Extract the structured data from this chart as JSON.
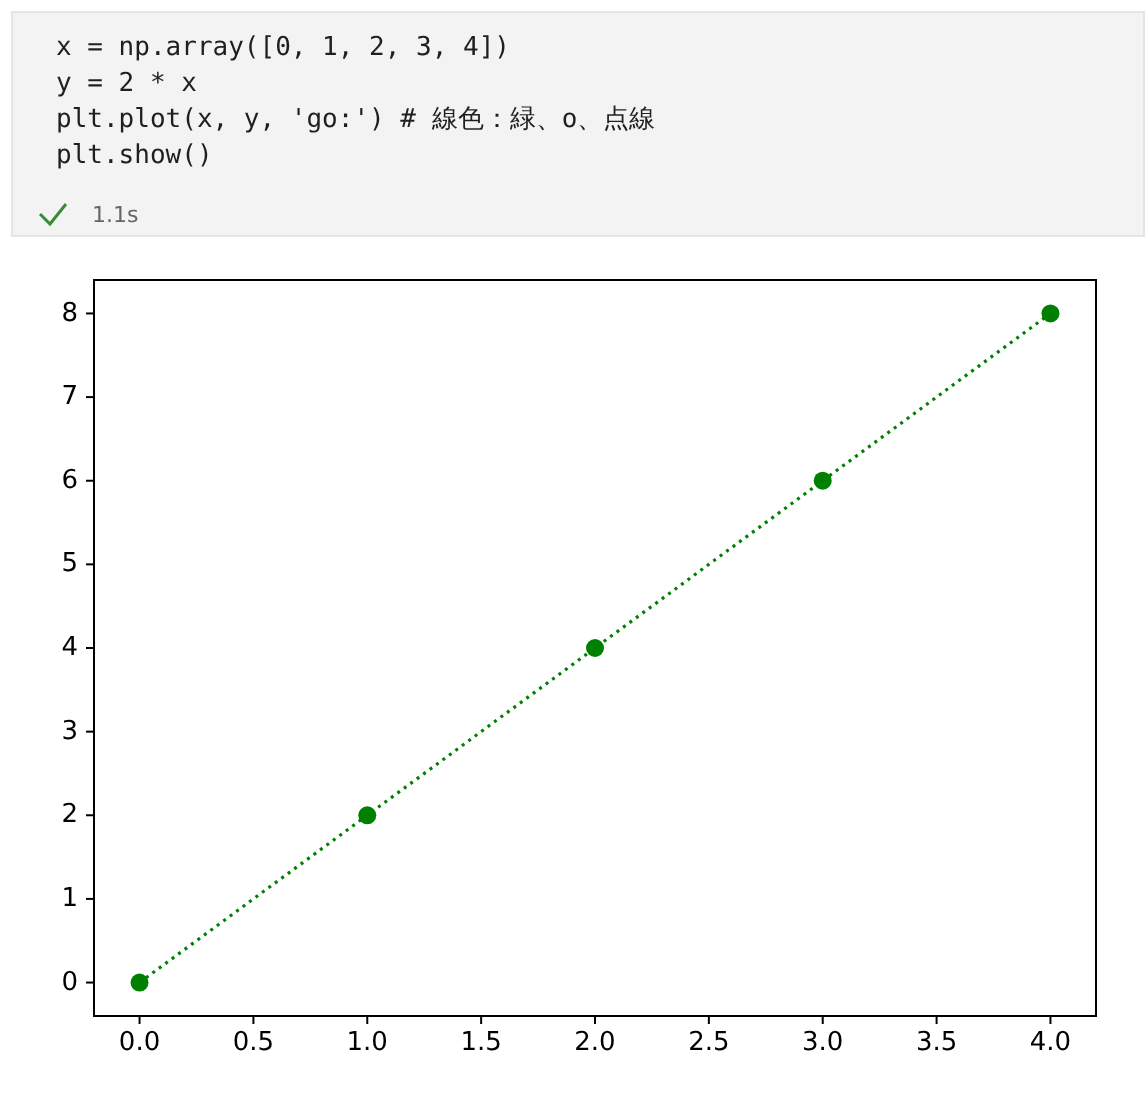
{
  "chart_data": {
    "type": "line",
    "x": [
      0,
      1,
      2,
      3,
      4
    ],
    "series": [
      {
        "color": "#008000",
        "values": [
          0,
          2,
          4,
          6,
          8
        ]
      }
    ],
    "xlim": [
      -0.2,
      4.2
    ],
    "ylim": [
      -0.4,
      8.4
    ],
    "xticks": [
      {
        "value": 0,
        "label": "0.0"
      },
      0.5,
      {
        "value": 1,
        "label": "1.0"
      },
      1.5,
      {
        "value": 2,
        "label": "2.0"
      },
      2.5,
      {
        "value": 3,
        "label": "3.0"
      },
      3.5,
      {
        "value": 4,
        "label": "4.0"
      }
    ],
    "yticks": [
      0,
      1,
      2,
      3,
      4,
      5,
      6,
      7,
      8
    ],
    "marker": "circle",
    "line_style": "dotted",
    "annotations": [
      "x = np.array([0, 1, 2, 3, 4])",
      "y = 2 * x",
      "plt.plot(x, y, 'go:')  # 線色：緑、o、点線",
      "plt.show()",
      "1.1s"
    ]
  }
}
